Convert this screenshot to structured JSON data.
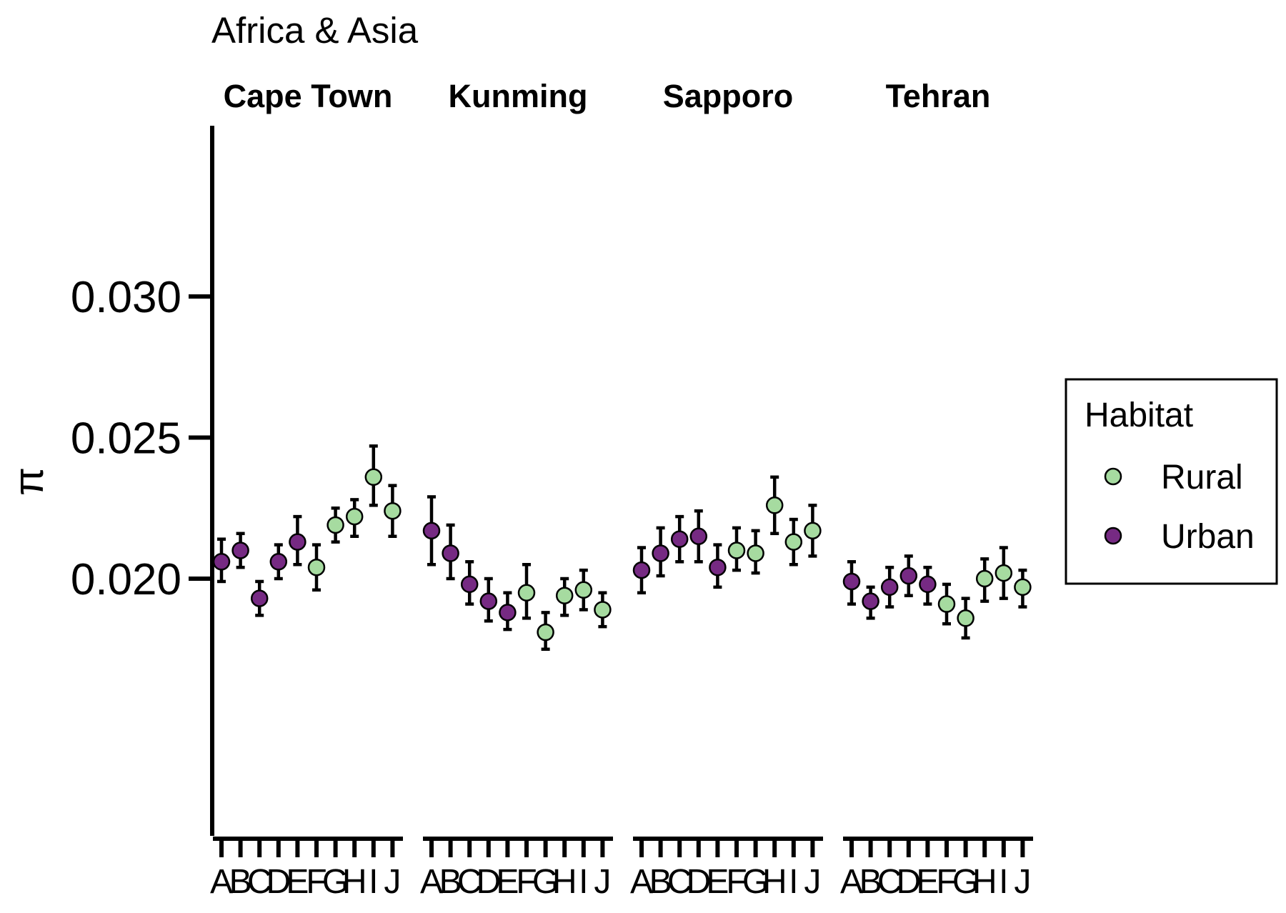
{
  "chart_data": {
    "type": "scatter",
    "title": "Africa & Asia",
    "ylabel": "π",
    "xlabel": "",
    "yticks": [
      "0.020",
      "0.025",
      "0.030"
    ],
    "ytick_values": [
      0.02,
      0.025,
      0.03
    ],
    "ylim": [
      0.0155,
      0.0355
    ],
    "grid": false,
    "legend": {
      "title": "Habitat",
      "position": "right",
      "entries": [
        {
          "label": "Rural",
          "color": "#a6dba0"
        },
        {
          "label": "Urban",
          "color": "#762a83"
        }
      ]
    },
    "colors": {
      "Rural": "#a6dba0",
      "Urban": "#762a83",
      "error_bar": "#000000"
    },
    "categories": [
      "A",
      "B",
      "C",
      "D",
      "E",
      "F",
      "G",
      "H",
      "I",
      "J"
    ],
    "panels": [
      {
        "city": "Cape Town",
        "points": [
          {
            "x": "A",
            "habitat": "Urban",
            "y": 0.0206,
            "lo": 0.0199,
            "hi": 0.0214
          },
          {
            "x": "B",
            "habitat": "Urban",
            "y": 0.021,
            "lo": 0.0204,
            "hi": 0.0216
          },
          {
            "x": "C",
            "habitat": "Urban",
            "y": 0.0193,
            "lo": 0.0187,
            "hi": 0.0199
          },
          {
            "x": "D",
            "habitat": "Urban",
            "y": 0.0206,
            "lo": 0.02,
            "hi": 0.0212
          },
          {
            "x": "E",
            "habitat": "Urban",
            "y": 0.0213,
            "lo": 0.0205,
            "hi": 0.0222
          },
          {
            "x": "F",
            "habitat": "Rural",
            "y": 0.0204,
            "lo": 0.0196,
            "hi": 0.0212
          },
          {
            "x": "G",
            "habitat": "Rural",
            "y": 0.0219,
            "lo": 0.0213,
            "hi": 0.0225
          },
          {
            "x": "H",
            "habitat": "Rural",
            "y": 0.0222,
            "lo": 0.0215,
            "hi": 0.0228
          },
          {
            "x": "I",
            "habitat": "Rural",
            "y": 0.0236,
            "lo": 0.0226,
            "hi": 0.0247
          },
          {
            "x": "J",
            "habitat": "Rural",
            "y": 0.0224,
            "lo": 0.0215,
            "hi": 0.0233
          }
        ]
      },
      {
        "city": "Kunming",
        "points": [
          {
            "x": "A",
            "habitat": "Urban",
            "y": 0.0217,
            "lo": 0.0205,
            "hi": 0.0229
          },
          {
            "x": "B",
            "habitat": "Urban",
            "y": 0.0209,
            "lo": 0.02,
            "hi": 0.0219
          },
          {
            "x": "C",
            "habitat": "Urban",
            "y": 0.0198,
            "lo": 0.0191,
            "hi": 0.0206
          },
          {
            "x": "D",
            "habitat": "Urban",
            "y": 0.0192,
            "lo": 0.0185,
            "hi": 0.02
          },
          {
            "x": "E",
            "habitat": "Urban",
            "y": 0.0188,
            "lo": 0.0182,
            "hi": 0.0195
          },
          {
            "x": "F",
            "habitat": "Rural",
            "y": 0.0195,
            "lo": 0.0186,
            "hi": 0.0205
          },
          {
            "x": "G",
            "habitat": "Rural",
            "y": 0.0181,
            "lo": 0.0175,
            "hi": 0.0188
          },
          {
            "x": "H",
            "habitat": "Rural",
            "y": 0.0194,
            "lo": 0.0187,
            "hi": 0.02
          },
          {
            "x": "I",
            "habitat": "Rural",
            "y": 0.0196,
            "lo": 0.0189,
            "hi": 0.0203
          },
          {
            "x": "J",
            "habitat": "Rural",
            "y": 0.0189,
            "lo": 0.0183,
            "hi": 0.0195
          }
        ]
      },
      {
        "city": "Sapporo",
        "points": [
          {
            "x": "A",
            "habitat": "Urban",
            "y": 0.0203,
            "lo": 0.0195,
            "hi": 0.0211
          },
          {
            "x": "B",
            "habitat": "Urban",
            "y": 0.0209,
            "lo": 0.0201,
            "hi": 0.0218
          },
          {
            "x": "C",
            "habitat": "Urban",
            "y": 0.0214,
            "lo": 0.0206,
            "hi": 0.0222
          },
          {
            "x": "D",
            "habitat": "Urban",
            "y": 0.0215,
            "lo": 0.0206,
            "hi": 0.0224
          },
          {
            "x": "E",
            "habitat": "Urban",
            "y": 0.0204,
            "lo": 0.0197,
            "hi": 0.0212
          },
          {
            "x": "F",
            "habitat": "Rural",
            "y": 0.021,
            "lo": 0.0203,
            "hi": 0.0218
          },
          {
            "x": "G",
            "habitat": "Rural",
            "y": 0.0209,
            "lo": 0.0202,
            "hi": 0.0217
          },
          {
            "x": "H",
            "habitat": "Rural",
            "y": 0.0226,
            "lo": 0.0216,
            "hi": 0.0236
          },
          {
            "x": "I",
            "habitat": "Rural",
            "y": 0.0213,
            "lo": 0.0205,
            "hi": 0.0221
          },
          {
            "x": "J",
            "habitat": "Rural",
            "y": 0.0217,
            "lo": 0.0208,
            "hi": 0.0226
          }
        ]
      },
      {
        "city": "Tehran",
        "points": [
          {
            "x": "A",
            "habitat": "Urban",
            "y": 0.0199,
            "lo": 0.0191,
            "hi": 0.0206
          },
          {
            "x": "B",
            "habitat": "Urban",
            "y": 0.0192,
            "lo": 0.0186,
            "hi": 0.0197
          },
          {
            "x": "C",
            "habitat": "Urban",
            "y": 0.0197,
            "lo": 0.019,
            "hi": 0.0204
          },
          {
            "x": "D",
            "habitat": "Urban",
            "y": 0.0201,
            "lo": 0.0194,
            "hi": 0.0208
          },
          {
            "x": "E",
            "habitat": "Urban",
            "y": 0.0198,
            "lo": 0.0191,
            "hi": 0.0204
          },
          {
            "x": "F",
            "habitat": "Rural",
            "y": 0.0191,
            "lo": 0.0184,
            "hi": 0.0198
          },
          {
            "x": "G",
            "habitat": "Rural",
            "y": 0.0186,
            "lo": 0.0179,
            "hi": 0.0193
          },
          {
            "x": "H",
            "habitat": "Rural",
            "y": 0.02,
            "lo": 0.0192,
            "hi": 0.0207
          },
          {
            "x": "I",
            "habitat": "Rural",
            "y": 0.0202,
            "lo": 0.0193,
            "hi": 0.0211
          },
          {
            "x": "J",
            "habitat": "Rural",
            "y": 0.0197,
            "lo": 0.019,
            "hi": 0.0203
          }
        ]
      }
    ]
  }
}
